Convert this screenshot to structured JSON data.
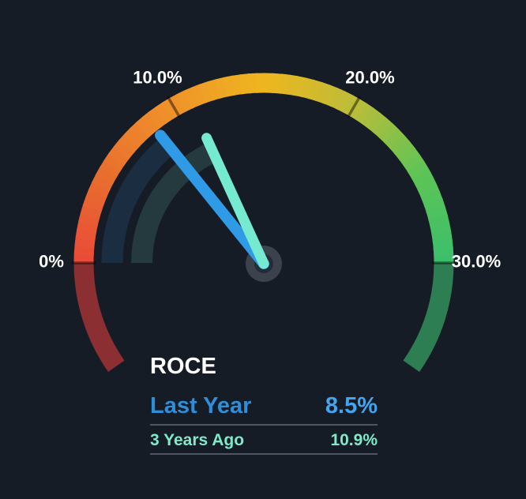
{
  "background_color": "#161c25",
  "chart_data": {
    "type": "gauge",
    "title": "ROCE",
    "unit": "%",
    "min": 0,
    "max": 30,
    "ticks": [
      {
        "value": 0,
        "label": "0%"
      },
      {
        "value": 10,
        "label": "10.0%"
      },
      {
        "value": 20,
        "label": "20.0%"
      },
      {
        "value": 30,
        "label": "30.0%"
      }
    ],
    "arc_gradient_stops": [
      {
        "at": 0,
        "color": "#e94a38"
      },
      {
        "at": 5,
        "color": "#e8702e"
      },
      {
        "at": 10,
        "color": "#f0932a"
      },
      {
        "at": 15,
        "color": "#eeb61f"
      },
      {
        "at": 20,
        "color": "#bcbd39"
      },
      {
        "at": 25,
        "color": "#5ec455"
      },
      {
        "at": 30,
        "color": "#3abf6c"
      }
    ],
    "under_min_color": "#8c2f33",
    "over_max_color": "#2d7e52",
    "tick_color": "rgba(0,0,0,0.45)",
    "label_color": "#ffffff",
    "hub_outer_color": "#3b424d",
    "hub_inner_color": "#262c36",
    "series": [
      {
        "name": "Last Year",
        "value": 8.5,
        "display": "8.5%",
        "needle_color": "#2f9ae6",
        "track_color": "#1b2d41",
        "legend_label_color": "#2d8ed9",
        "legend_value_color": "#42a5f1"
      },
      {
        "name": "3 Years Ago",
        "value": 10.9,
        "display": "10.9%",
        "needle_color": "#76e9d1",
        "track_color": "#243a3e",
        "legend_label_color": "#7deac8",
        "legend_value_color": "#7deac8"
      }
    ]
  }
}
